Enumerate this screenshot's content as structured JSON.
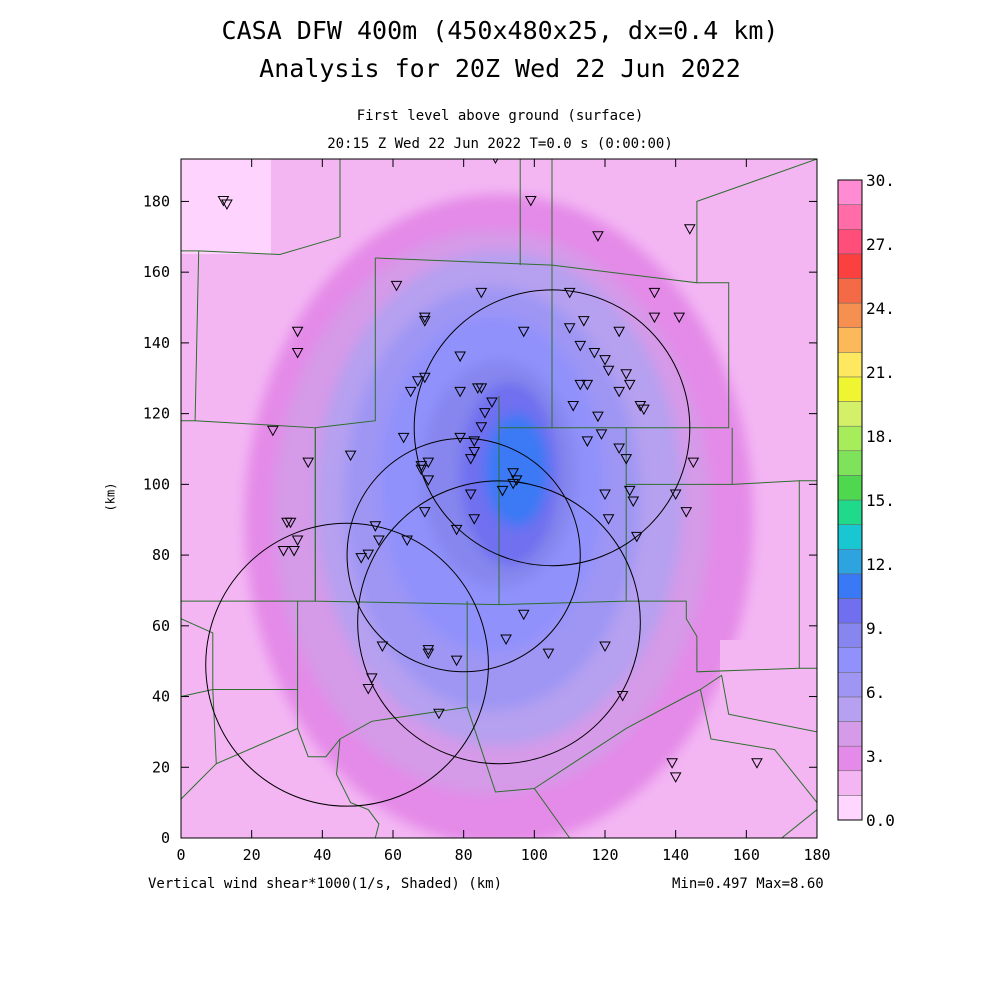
{
  "header": {
    "title_line1": "CASA DFW 400m (450x480x25, dx=0.4 km)",
    "title_line2": "Analysis for 20Z Wed 22 Jun 2022",
    "subtitle_line1": "First level above ground (surface)",
    "subtitle_line2": "20:15 Z Wed 22 Jun 2022   T=0.0 s (0:00:00)"
  },
  "axes": {
    "x_ticks": [
      "0",
      "20",
      "40",
      "60",
      "80",
      "100",
      "120",
      "140",
      "160",
      "180"
    ],
    "y_ticks": [
      "0",
      "20",
      "40",
      "60",
      "80",
      "100",
      "120",
      "140",
      "160",
      "180"
    ],
    "y_label": "(km)",
    "x_caption": "Vertical wind shear*1000(1/s, Shaded)  (km)",
    "xlim": [
      0,
      180
    ],
    "ylim": [
      0,
      192
    ]
  },
  "stats": {
    "min_max": "Min=0.497 Max=8.60"
  },
  "colorbar": {
    "labels": [
      "30.",
      "27.",
      "24.",
      "21.",
      "18.",
      "15.",
      "12.",
      "9.",
      "6.",
      "3.",
      "0.0"
    ],
    "colors": [
      "#ffd6ff",
      "#f3b6f3",
      "#e48ae8",
      "#d59ae8",
      "#b6a0f0",
      "#9f96f4",
      "#9191fc",
      "#8686ee",
      "#6f6ff0",
      "#3a79f5",
      "#2da3e0",
      "#19c7d2",
      "#21d98a",
      "#4fd84f",
      "#7ee35a",
      "#a6ec5b",
      "#d4f068",
      "#f0f532",
      "#fde860",
      "#fbb95a",
      "#f59050",
      "#f46a46",
      "#fb4040",
      "#ff4e7a",
      "#ff6ca8",
      "#ff8cd2"
    ]
  },
  "map": {
    "shear_field_levels": [
      1,
      2,
      3,
      4,
      5,
      6,
      7,
      8,
      8.6
    ],
    "radar_rings": [
      {
        "cx": 47,
        "cy": 49,
        "r": 40
      },
      {
        "cx": 80,
        "cy": 80,
        "r": 33
      },
      {
        "cx": 105,
        "cy": 116,
        "r": 39
      },
      {
        "cx": 90,
        "cy": 61,
        "r": 40
      }
    ],
    "stations": [
      [
        12,
        180
      ],
      [
        13,
        179
      ],
      [
        99,
        180
      ],
      [
        118,
        170
      ],
      [
        144,
        172
      ],
      [
        89,
        192
      ],
      [
        61,
        156
      ],
      [
        85,
        154
      ],
      [
        110,
        154
      ],
      [
        134,
        154
      ],
      [
        69,
        147
      ],
      [
        69,
        146
      ],
      [
        114,
        146
      ],
      [
        134,
        147
      ],
      [
        141,
        147
      ],
      [
        33,
        143
      ],
      [
        33,
        137
      ],
      [
        97,
        143
      ],
      [
        110,
        144
      ],
      [
        124,
        143
      ],
      [
        113,
        139
      ],
      [
        117,
        137
      ],
      [
        79,
        136
      ],
      [
        120,
        135
      ],
      [
        121,
        132
      ],
      [
        126,
        131
      ],
      [
        67,
        129
      ],
      [
        69,
        130
      ],
      [
        113,
        128
      ],
      [
        115,
        128
      ],
      [
        127,
        128
      ],
      [
        124,
        126
      ],
      [
        65,
        126
      ],
      [
        79,
        126
      ],
      [
        84,
        127
      ],
      [
        85,
        127
      ],
      [
        130,
        122
      ],
      [
        131,
        121
      ],
      [
        111,
        122
      ],
      [
        118,
        119
      ],
      [
        86,
        120
      ],
      [
        26,
        115
      ],
      [
        85,
        116
      ],
      [
        88,
        123
      ],
      [
        63,
        113
      ],
      [
        79,
        113
      ],
      [
        83,
        112
      ],
      [
        115,
        112
      ],
      [
        119,
        114
      ],
      [
        124,
        110
      ],
      [
        126,
        107
      ],
      [
        145,
        106
      ],
      [
        36,
        106
      ],
      [
        48,
        108
      ],
      [
        68,
        104
      ],
      [
        68,
        105
      ],
      [
        70,
        106
      ],
      [
        70,
        101
      ],
      [
        82,
        107
      ],
      [
        83,
        109
      ],
      [
        94,
        103
      ],
      [
        95,
        101
      ],
      [
        94,
        100
      ],
      [
        140,
        97
      ],
      [
        120,
        97
      ],
      [
        127,
        98
      ],
      [
        128,
        95
      ],
      [
        143,
        92
      ],
      [
        30,
        89
      ],
      [
        31,
        89
      ],
      [
        33,
        84
      ],
      [
        55,
        88
      ],
      [
        56,
        84
      ],
      [
        64,
        84
      ],
      [
        69,
        92
      ],
      [
        78,
        87
      ],
      [
        82,
        97
      ],
      [
        83,
        90
      ],
      [
        91,
        98
      ],
      [
        121,
        90
      ],
      [
        129,
        85
      ],
      [
        29,
        81
      ],
      [
        32,
        81
      ],
      [
        51,
        79
      ],
      [
        53,
        80
      ],
      [
        97,
        63
      ],
      [
        92,
        56
      ],
      [
        104,
        52
      ],
      [
        57,
        54
      ],
      [
        70,
        53
      ],
      [
        70,
        52
      ],
      [
        78,
        50
      ],
      [
        120,
        54
      ],
      [
        53,
        42
      ],
      [
        54,
        45
      ],
      [
        73,
        35
      ],
      [
        125,
        40
      ],
      [
        139,
        21
      ],
      [
        140,
        17
      ],
      [
        163,
        21
      ]
    ]
  }
}
